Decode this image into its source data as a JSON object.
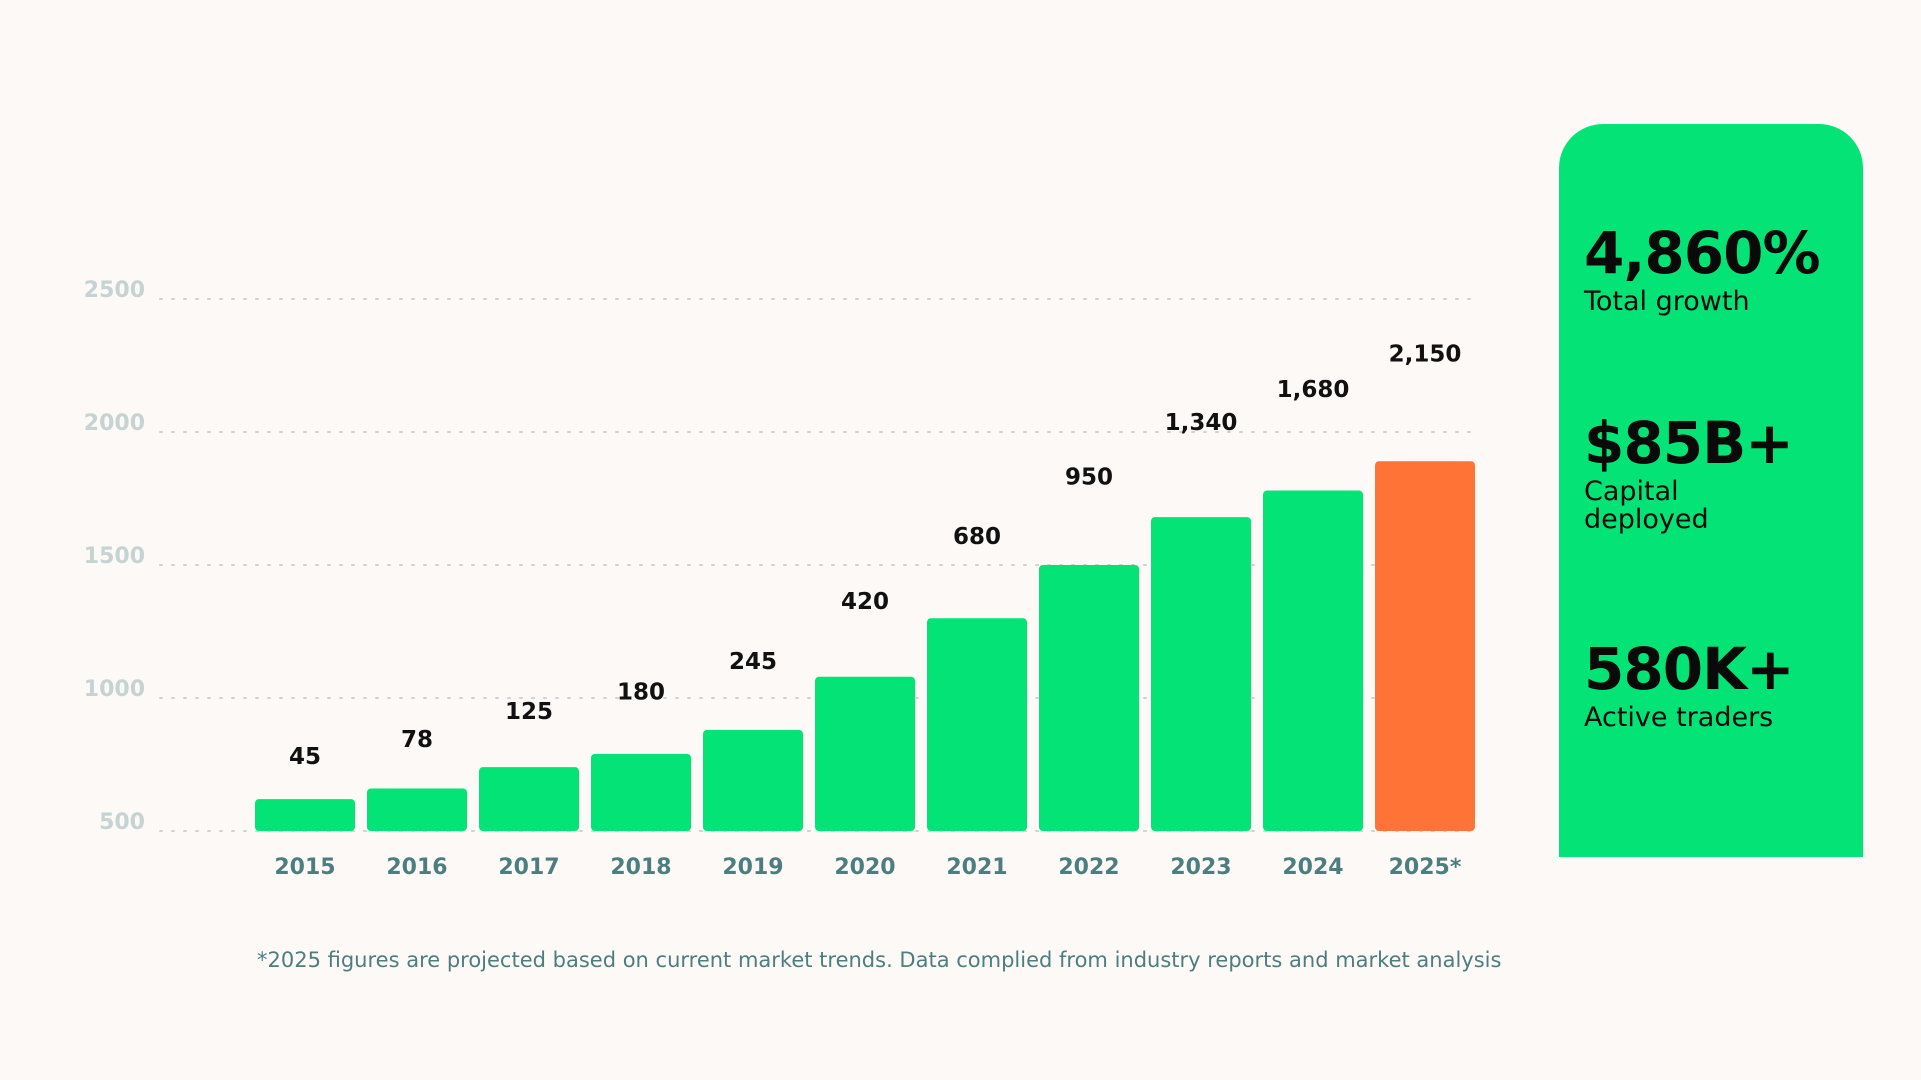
{
  "chart_data": {
    "type": "bar",
    "categories": [
      "2015",
      "2016",
      "2017",
      "2018",
      "2019",
      "2020",
      "2021",
      "2022",
      "2023",
      "2024",
      "2025*"
    ],
    "values": [
      45,
      78,
      125,
      180,
      245,
      420,
      680,
      950,
      1340,
      1680,
      2150
    ],
    "bar_heights": [
      620,
      660,
      740,
      790,
      880,
      1080,
      1300,
      1500,
      1680,
      1780,
      1890
    ],
    "data_labels": [
      "45",
      "78",
      "125",
      "180",
      "245",
      "420",
      "680",
      "950",
      "1,340",
      "1,680",
      "2,150"
    ],
    "yticks": [
      "500",
      "1000",
      "1500",
      "2000",
      "2500"
    ],
    "ytick_values": [
      500,
      1000,
      1500,
      2000,
      2500
    ],
    "ylim": [
      500,
      2500
    ],
    "grid": true,
    "grid_style": "dotted",
    "highlight_index": 10,
    "colors": {
      "bar": "#04e476",
      "highlight": "#ff7336",
      "grid": "#c9d6d5",
      "ytick": "#c5d3d2",
      "xtick": "#4e7d80"
    }
  },
  "stats": [
    {
      "value": "4,860%",
      "label": "Total growth"
    },
    {
      "value": "$85B+",
      "label": "Capital deployed"
    },
    {
      "value": "580K+",
      "label": "Active traders"
    }
  ],
  "footnote": "*2025 figures are projected based on current market trends. Data complied from industry reports and market analysis",
  "colors": {
    "background": "#fdf9f7",
    "card": "#04e476",
    "text": "#0a0a0a"
  }
}
